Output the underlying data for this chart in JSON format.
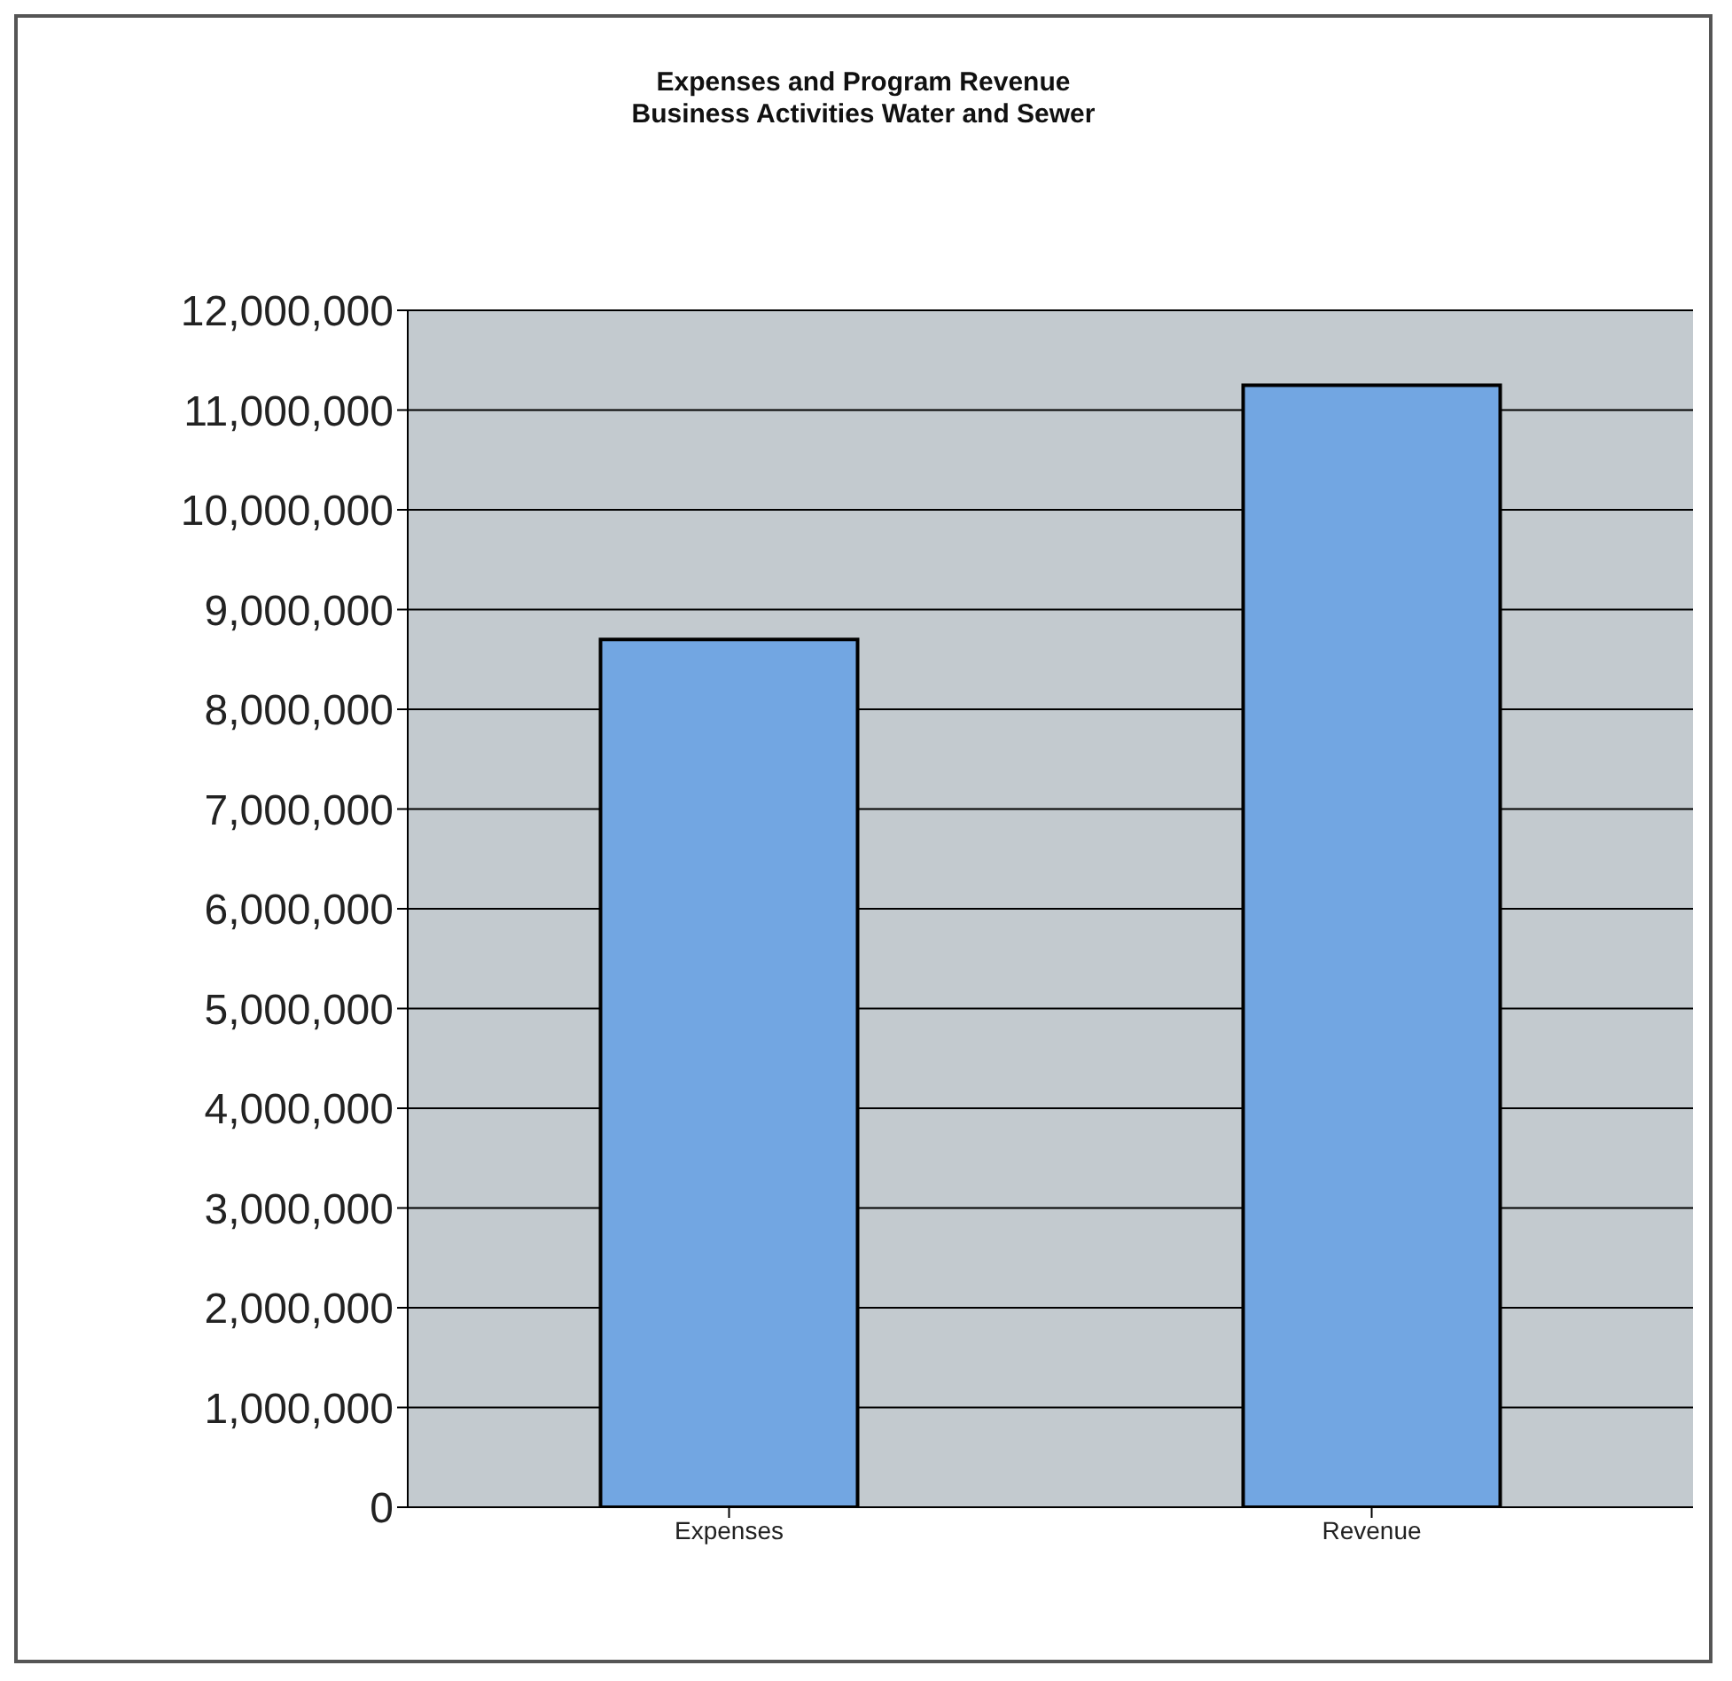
{
  "chart_data": {
    "type": "bar",
    "title": "Expenses and Program Revenue",
    "subtitle": "Business Activities Water and Sewer",
    "categories": [
      "Expenses",
      "Revenue"
    ],
    "values": [
      8700000,
      11250000
    ],
    "color": "#72a6e2",
    "ylim": [
      0,
      12000000
    ],
    "yticks": [
      0,
      {
        "value": 1000000,
        "label": "1,000,000"
      },
      {
        "value": 2000000,
        "label": "2,000,000"
      },
      {
        "value": 3000000,
        "label": "3,000,000"
      },
      {
        "value": 4000000,
        "label": "4,000,000"
      },
      {
        "value": 5000000,
        "label": "5,000,000"
      },
      {
        "value": 6000000,
        "label": "6,000,000"
      },
      {
        "value": 7000000,
        "label": "7,000,000"
      },
      {
        "value": 8000000,
        "label": "8,000,000"
      },
      {
        "value": 9000000,
        "label": "9,000,000"
      },
      {
        "value": 10000000,
        "label": "10,000,000"
      },
      {
        "value": 11000000,
        "label": "11,000,000"
      },
      {
        "value": 12000000,
        "label": "12,000,000"
      }
    ],
    "grid": "y",
    "legend": false
  }
}
